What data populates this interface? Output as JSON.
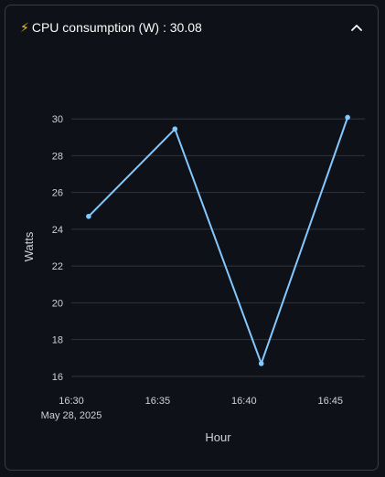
{
  "expander": {
    "icon": "lightning-bolt-icon",
    "label": "CPU consumption (W) : 30.08",
    "toggle_icon": "chevron-up-icon"
  },
  "colors": {
    "background": "#0e1117",
    "line": "#83c9ff",
    "grid": "#31333f",
    "text": "#fafafa",
    "axis_text": "#d0d2d6"
  },
  "chart_data": {
    "type": "line",
    "xlabel": "Hour",
    "ylabel": "Watts",
    "x": [
      "16:31",
      "16:36",
      "16:41",
      "16:46"
    ],
    "series": [
      {
        "values": [
          24.7,
          29.45,
          16.7,
          30.08
        ]
      }
    ],
    "xticks": [
      "16:30",
      "16:35",
      "16:40",
      "16:45"
    ],
    "xtick_sublabel": "May 28, 2025",
    "yticks": [
      16,
      18,
      20,
      22,
      24,
      26,
      28,
      30
    ],
    "xlim": [
      "16:30",
      "16:47"
    ],
    "ylim": [
      15.5,
      30.6
    ],
    "grid": true
  }
}
